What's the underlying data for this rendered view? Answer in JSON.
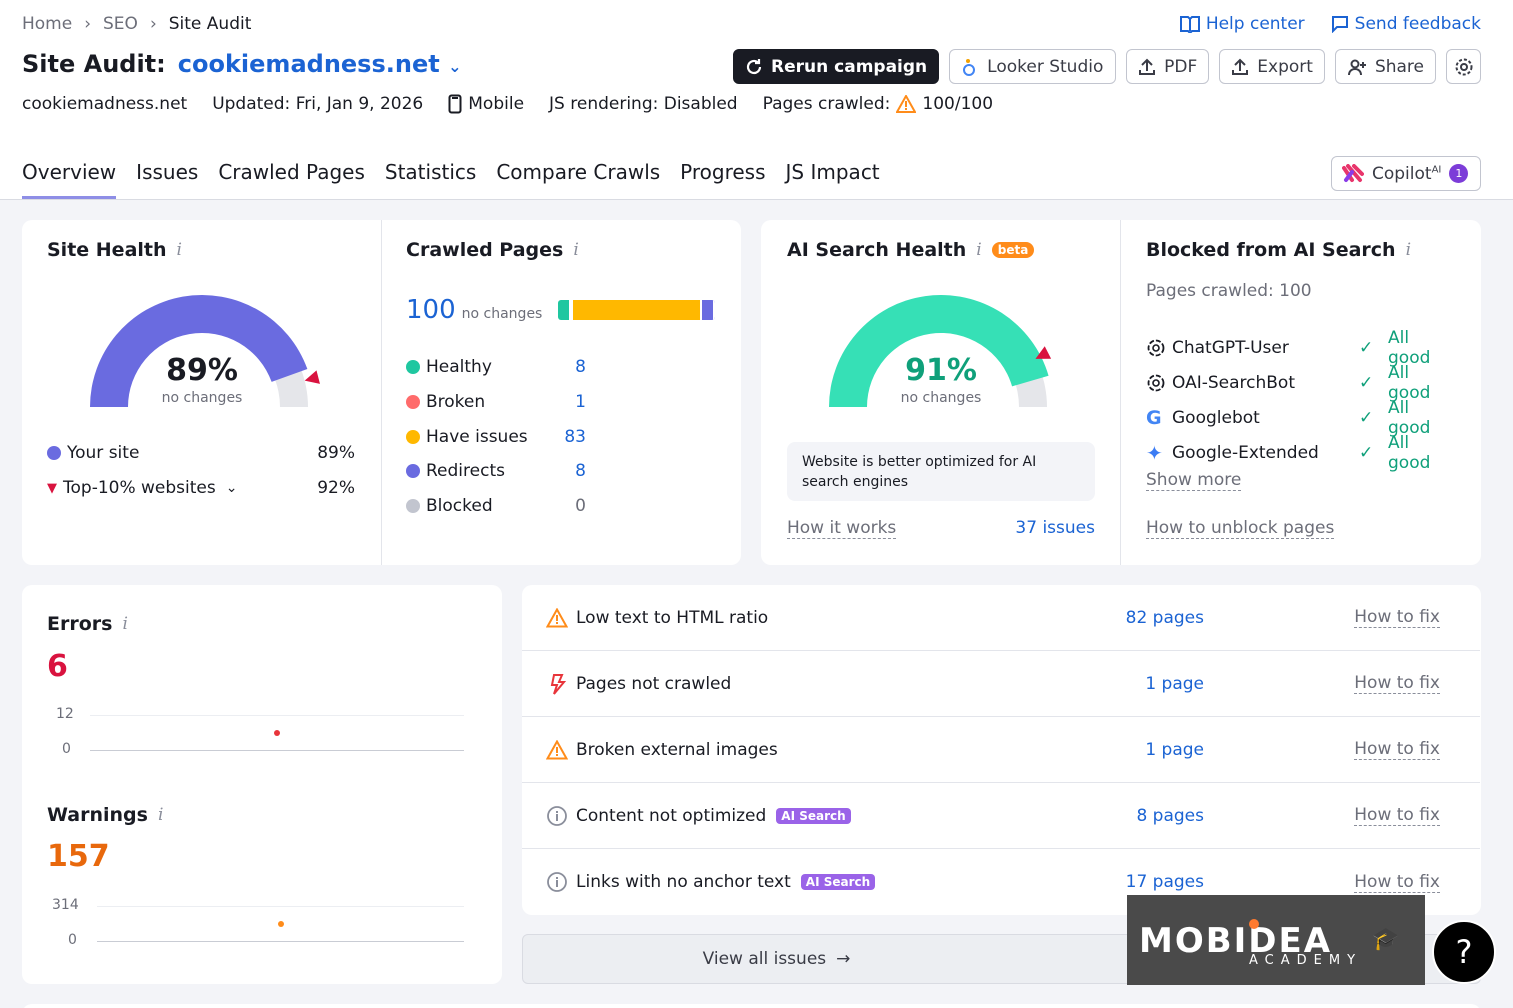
{
  "breadcrumb": [
    "Home",
    "SEO",
    "Site Audit"
  ],
  "top_links": {
    "help": "Help center",
    "feedback": "Send feedback"
  },
  "title": {
    "label": "Site Audit:",
    "domain": "cookiemadness.net"
  },
  "buttons": {
    "rerun": "Rerun campaign",
    "looker": "Looker Studio",
    "pdf": "PDF",
    "export": "Export",
    "share": "Share"
  },
  "meta": {
    "domain": "cookiemadness.net",
    "updated": "Updated: Fri, Jan 9, 2026",
    "device": "Mobile",
    "js": "JS rendering: Disabled",
    "pages_label": "Pages crawled:",
    "pages_value": "100/100"
  },
  "tabs": [
    "Overview",
    "Issues",
    "Crawled Pages",
    "Statistics",
    "Compare Crawls",
    "Progress",
    "JS Impact"
  ],
  "copilot": {
    "label": "Copilot",
    "sup": "AI",
    "count": "1"
  },
  "site_health": {
    "title": "Site Health",
    "value": "89%",
    "percent": 89,
    "sub": "no changes",
    "legend": [
      {
        "label": "Your site",
        "value": "89%"
      },
      {
        "label": "Top-10% websites",
        "value": "92%"
      }
    ]
  },
  "crawled_pages": {
    "title": "Crawled Pages",
    "total": "100",
    "sub": "no changes",
    "rows": [
      {
        "label": "Healthy",
        "value": "8",
        "color": "#1fc7a0"
      },
      {
        "label": "Broken",
        "value": "1",
        "color": "#ff6b6b"
      },
      {
        "label": "Have issues",
        "value": "83",
        "color": "#ffb800"
      },
      {
        "label": "Redirects",
        "value": "8",
        "color": "#6a6be0"
      },
      {
        "label": "Blocked",
        "value": "0",
        "color": "#c2c5cf"
      }
    ]
  },
  "ai_health": {
    "title": "AI Search Health",
    "badge": "beta",
    "value": "91%",
    "percent": 91,
    "sub": "no changes",
    "note": "Website is better optimized for AI search engines",
    "how": "How it works",
    "issues": "37 issues"
  },
  "blocked": {
    "title": "Blocked from AI Search",
    "pages": "Pages crawled: 100",
    "bots": [
      {
        "name": "ChatGPT-User",
        "status": "All good"
      },
      {
        "name": "OAI-SearchBot",
        "status": "All good"
      },
      {
        "name": "Googlebot",
        "status": "All good"
      },
      {
        "name": "Google-Extended",
        "status": "All good"
      }
    ],
    "more": "Show more",
    "unblock": "How to unblock pages"
  },
  "errors": {
    "title": "Errors",
    "value": "6",
    "ymax": "12",
    "ymin": "0"
  },
  "warnings": {
    "title": "Warnings",
    "value": "157",
    "ymax": "314",
    "ymin": "0"
  },
  "issues": [
    {
      "name": "Low text to HTML ratio",
      "count": "82 pages",
      "fix": "How to fix",
      "icon": "warning-icon",
      "badge": ""
    },
    {
      "name": "Pages not crawled",
      "count": "1 page",
      "fix": "How to fix",
      "icon": "error-icon",
      "badge": ""
    },
    {
      "name": "Broken external images",
      "count": "1 page",
      "fix": "How to fix",
      "icon": "warning-icon",
      "badge": ""
    },
    {
      "name": "Content not optimized",
      "count": "8 pages",
      "fix": "How to fix",
      "icon": "info-icon",
      "badge": "AI Search"
    },
    {
      "name": "Links with no anchor text",
      "count": "17 pages",
      "fix": "How to fix",
      "icon": "info-icon",
      "badge": "AI Search"
    }
  ],
  "view_all": "View all issues",
  "watermark": {
    "brand": "MOBIDEA",
    "sub": "ACADEMY"
  },
  "help_glyph": "?"
}
